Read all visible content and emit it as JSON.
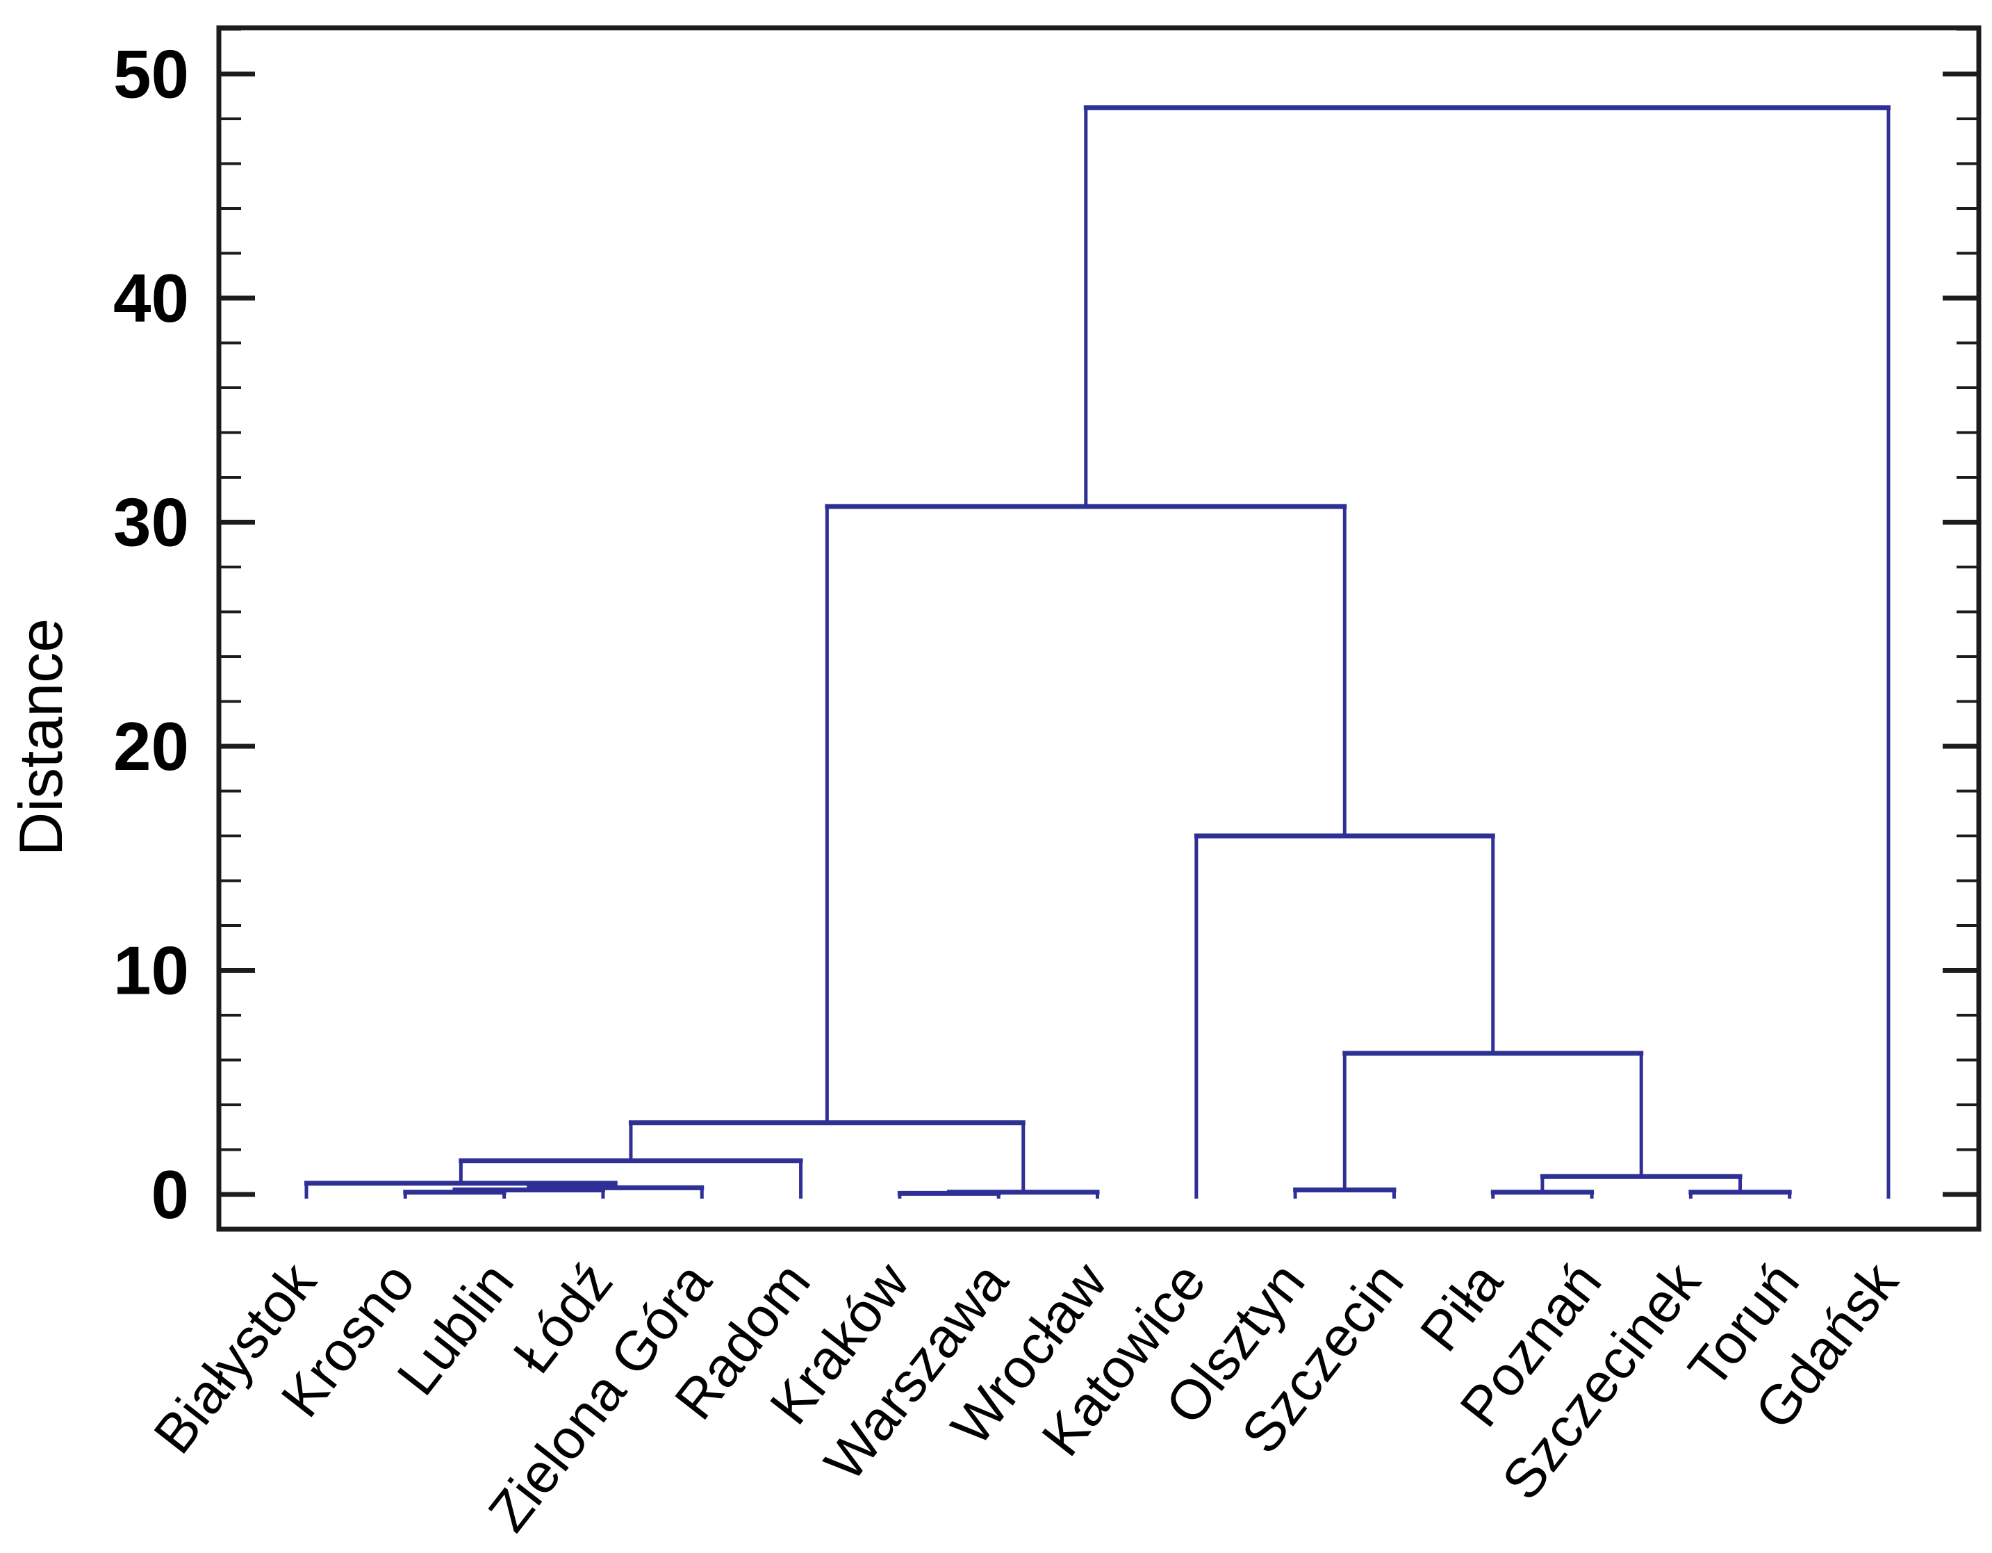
{
  "chart_data": {
    "type": "dendrogram",
    "title": "",
    "ylabel": "Distance",
    "xlabel": "",
    "ylim": [
      0,
      52
    ],
    "y_major_ticks": [
      0,
      10,
      20,
      30,
      40,
      50
    ],
    "y_minor_step": 2,
    "grid": "off",
    "legend": "none",
    "leaves": [
      "Białystok",
      "Krosno",
      "Lublin",
      "Łódź",
      "Zielona Góra",
      "Radom",
      "Kraków",
      "Warszawa",
      "Wrocław",
      "Katowice",
      "Olsztyn",
      "Szczecin",
      "Piła",
      "Poznań",
      "Szczecinek",
      "Toruń",
      "Gdańsk"
    ],
    "merges": [
      {
        "id": "M1",
        "a": "Kraków",
        "b": "Warszawa",
        "h": 0.05
      },
      {
        "id": "M2",
        "a": "M1",
        "b": "Wrocław",
        "h": 0.1
      },
      {
        "id": "M3",
        "a": "Krosno",
        "b": "Lublin",
        "h": 0.1
      },
      {
        "id": "M4",
        "a": "M3",
        "b": "Łódź",
        "h": 0.2
      },
      {
        "id": "M5",
        "a": "M4",
        "b": "Zielona Góra",
        "h": 0.3
      },
      {
        "id": "M6",
        "a": "Białystok",
        "b": "M5",
        "h": 0.5
      },
      {
        "id": "M7",
        "a": "M6",
        "b": "Radom",
        "h": 1.5
      },
      {
        "id": "M8",
        "a": "M7",
        "b": "M2",
        "h": 3.2
      },
      {
        "id": "M9",
        "a": "Olsztyn",
        "b": "Szczecin",
        "h": 0.2
      },
      {
        "id": "M10",
        "a": "Piła",
        "b": "Poznań",
        "h": 0.1
      },
      {
        "id": "M11",
        "a": "Szczecinek",
        "b": "Toruń",
        "h": 0.1
      },
      {
        "id": "M12",
        "a": "M10",
        "b": "M11",
        "h": 0.8
      },
      {
        "id": "M13",
        "a": "M9",
        "b": "M12",
        "h": 6.3
      },
      {
        "id": "M14",
        "a": "Katowice",
        "b": "M13",
        "h": 16.0
      },
      {
        "id": "M15",
        "a": "M8",
        "b": "M14",
        "h": 30.7
      },
      {
        "id": "M16",
        "a": "M15",
        "b": "Gdańsk",
        "h": 48.5
      }
    ],
    "line_color": "#2e3096",
    "axis_color": "#1c1c1c",
    "text_color": "#000000"
  }
}
